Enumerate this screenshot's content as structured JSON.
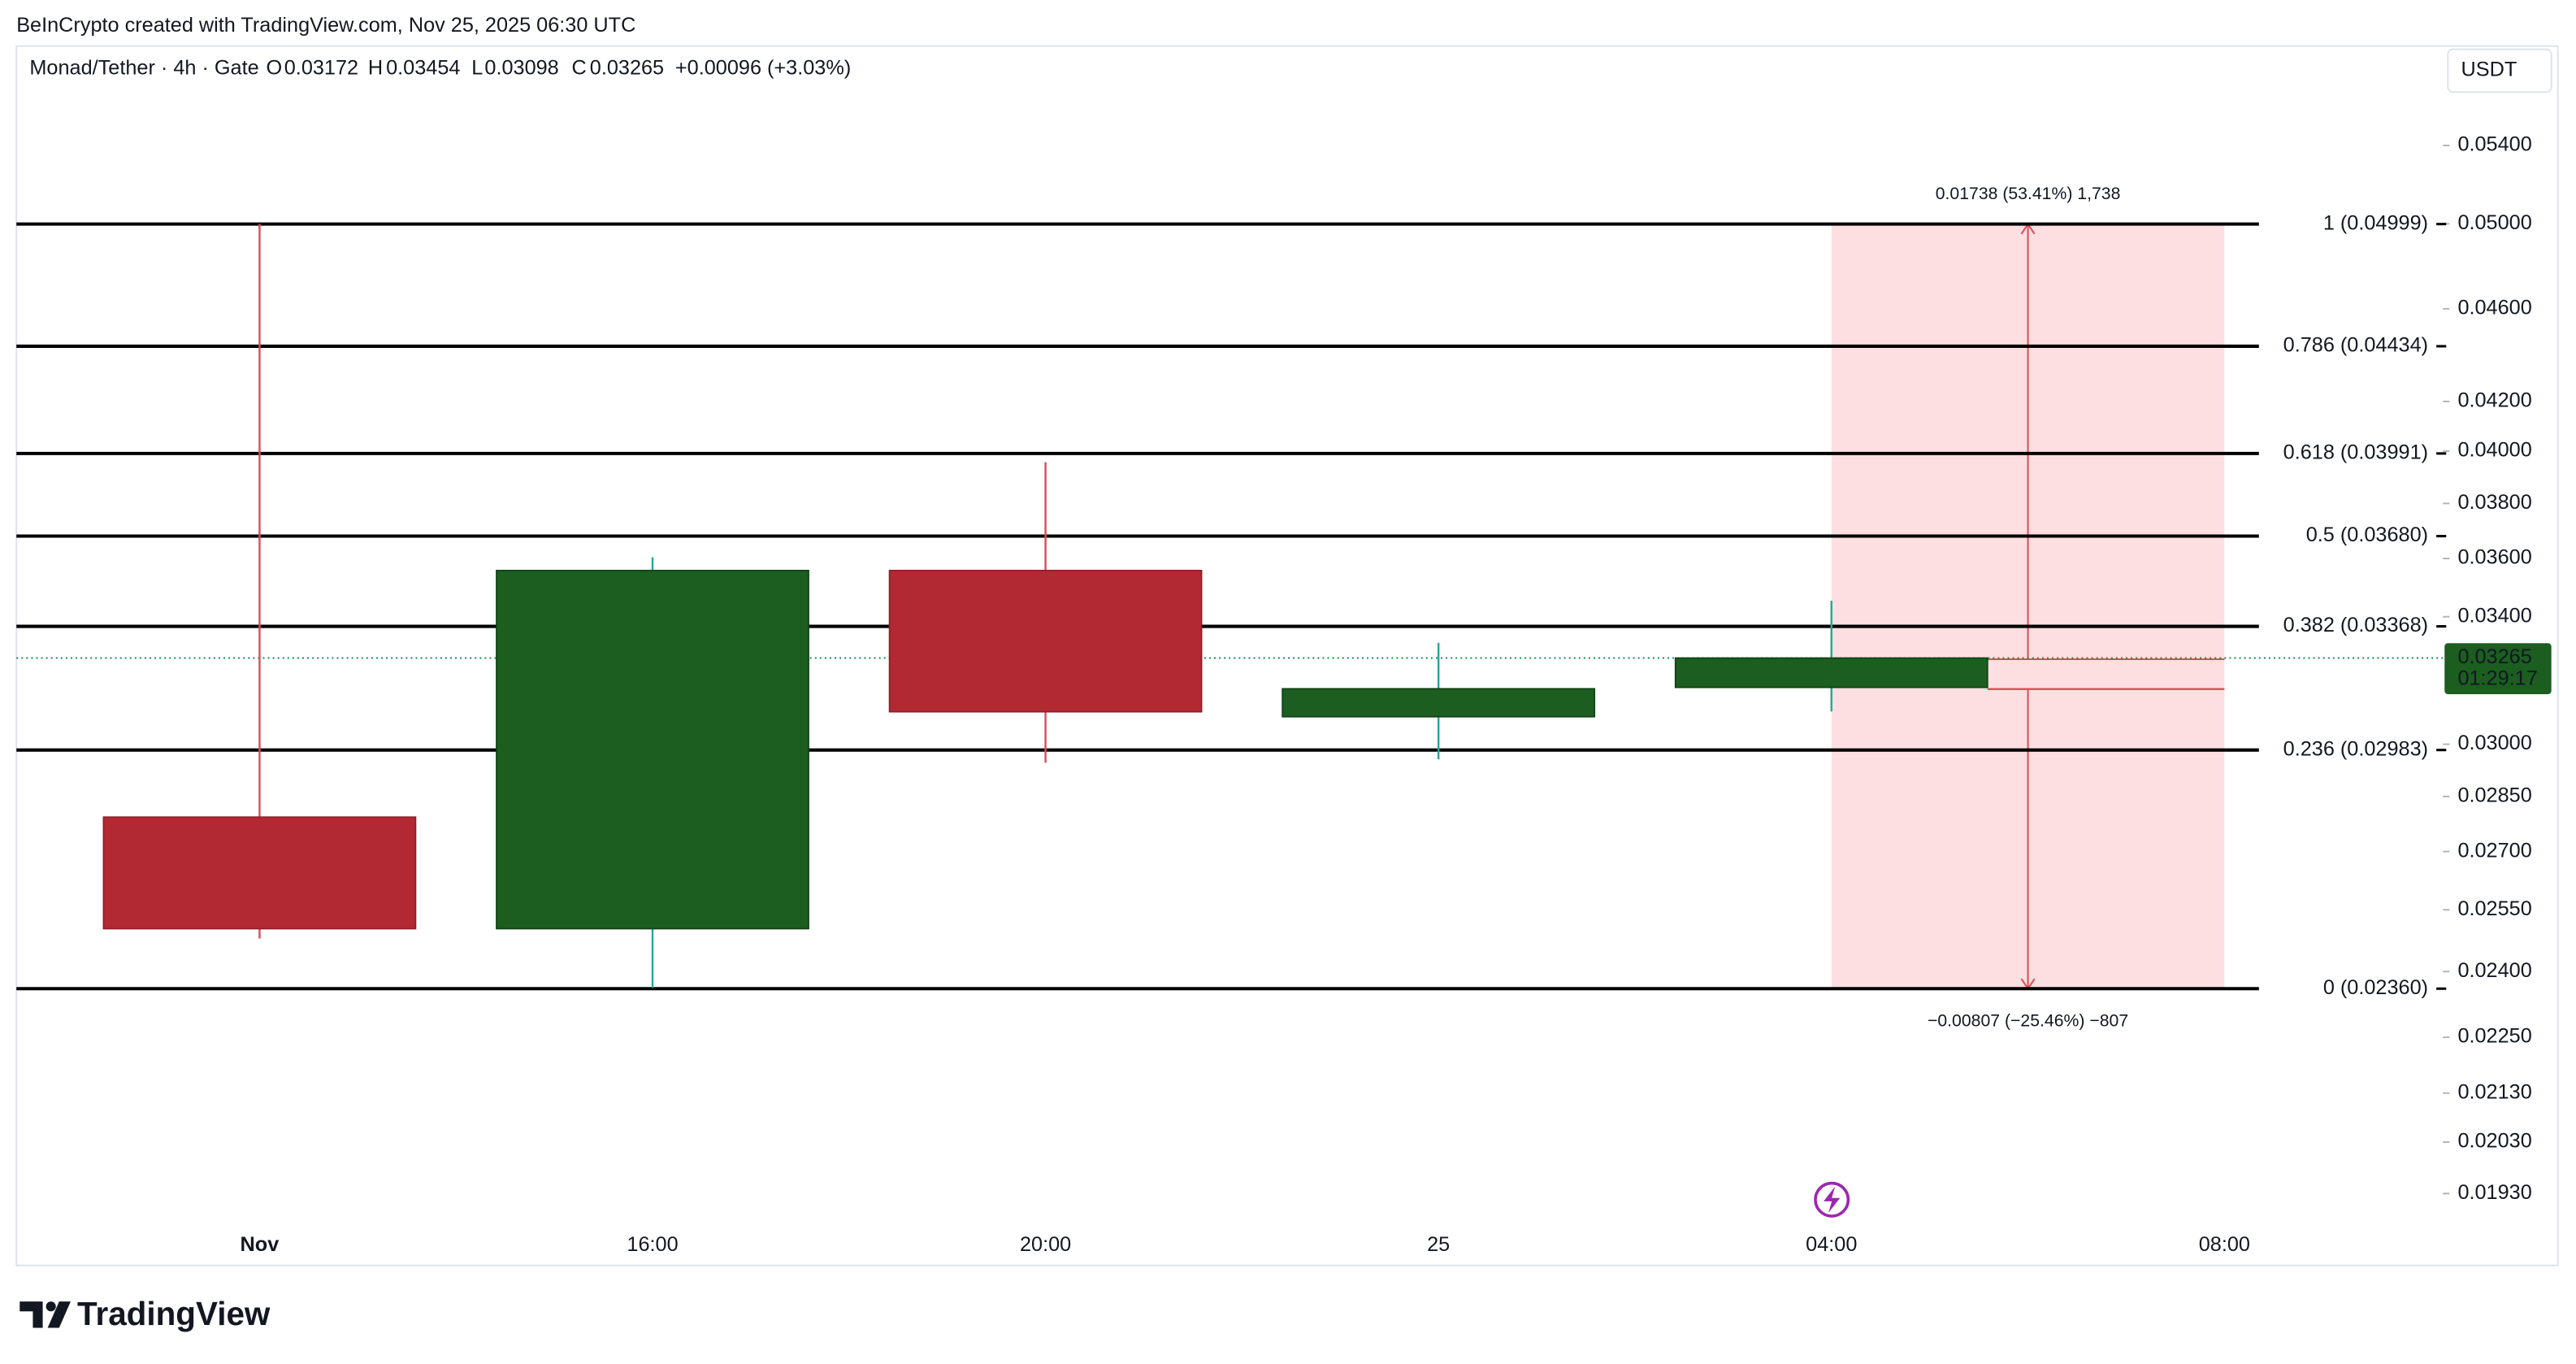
{
  "header": "BeInCrypto created with TradingView.com, Nov 25, 2025 06:30 UTC",
  "chart_data": {
    "type": "candlestick",
    "title": "Monad/Tether · 4h · Gate",
    "legend_keys": [
      "O",
      "H",
      "L",
      "C"
    ],
    "legend_values": [
      0.03172,
      0.03454,
      0.03098,
      0.03265
    ],
    "change_label": "+0.00096 (+3.03%)",
    "categories": [
      "Nov",
      "16:00",
      "20:00",
      "25",
      "04:00",
      "08:00"
    ],
    "open": [
      0.02793,
      0.02503,
      0.03558,
      0.03082,
      0.03172,
      null
    ],
    "high": [
      0.05,
      0.03604,
      0.03957,
      0.03314,
      0.03454,
      null
    ],
    "low": [
      0.02479,
      0.02362,
      0.02946,
      0.02956,
      0.03098,
      null
    ],
    "close": [
      0.02503,
      0.03558,
      0.03097,
      0.03168,
      0.03265,
      null
    ],
    "up_color": "#1b5e20",
    "down_color": "#b22833",
    "up_wick_color": "#26a69a",
    "down_wick_color": "#e04a55",
    "y_axis_label": "USDT",
    "log_scale": true,
    "ylim": [
      0.019,
      0.057
    ],
    "yticks": [
      {
        "value": 0.054,
        "label": "0.05400"
      },
      {
        "value": 0.05,
        "label": "0.05000"
      },
      {
        "value": 0.046,
        "label": "0.04600"
      },
      {
        "value": 0.042,
        "label": "0.04200"
      },
      {
        "value": 0.04,
        "label": "0.04000"
      },
      {
        "value": 0.038,
        "label": "0.03800"
      },
      {
        "value": 0.036,
        "label": "0.03600"
      },
      {
        "value": 0.034,
        "label": "0.03400"
      },
      {
        "value": 0.03,
        "label": "0.03000"
      },
      {
        "value": 0.0285,
        "label": "0.02850"
      },
      {
        "value": 0.027,
        "label": "0.02700"
      },
      {
        "value": 0.0255,
        "label": "0.02550"
      },
      {
        "value": 0.024,
        "label": "0.02400"
      },
      {
        "value": 0.0225,
        "label": "0.02250"
      },
      {
        "value": 0.0213,
        "label": "0.02130"
      },
      {
        "value": 0.0203,
        "label": "0.02030"
      },
      {
        "value": 0.0193,
        "label": "0.01930"
      }
    ],
    "last_price": 0.03265,
    "countdown": "01:29:17",
    "fib_levels": [
      {
        "value": 0.04999,
        "label": "1 (0.04999)"
      },
      {
        "value": 0.04434,
        "label": "0.786 (0.04434)"
      },
      {
        "value": 0.03991,
        "label": "0.618 (0.03991)"
      },
      {
        "value": 0.0368,
        "label": "0.5 (0.03680)"
      },
      {
        "value": 0.03368,
        "label": "0.382 (0.03368)"
      },
      {
        "value": 0.02983,
        "label": "0.236 (0.02983)"
      },
      {
        "value": 0.0236,
        "label": "0 (0.02360)"
      }
    ],
    "range_tool": {
      "high": 0.04999,
      "low": 0.0236,
      "entry": 0.03261,
      "stop": 0.03167,
      "upper_label": "0.01738 (53.41%) 1,738",
      "lower_label": "−0.00807 (−25.46%) −807"
    }
  },
  "footer": "TradingView"
}
